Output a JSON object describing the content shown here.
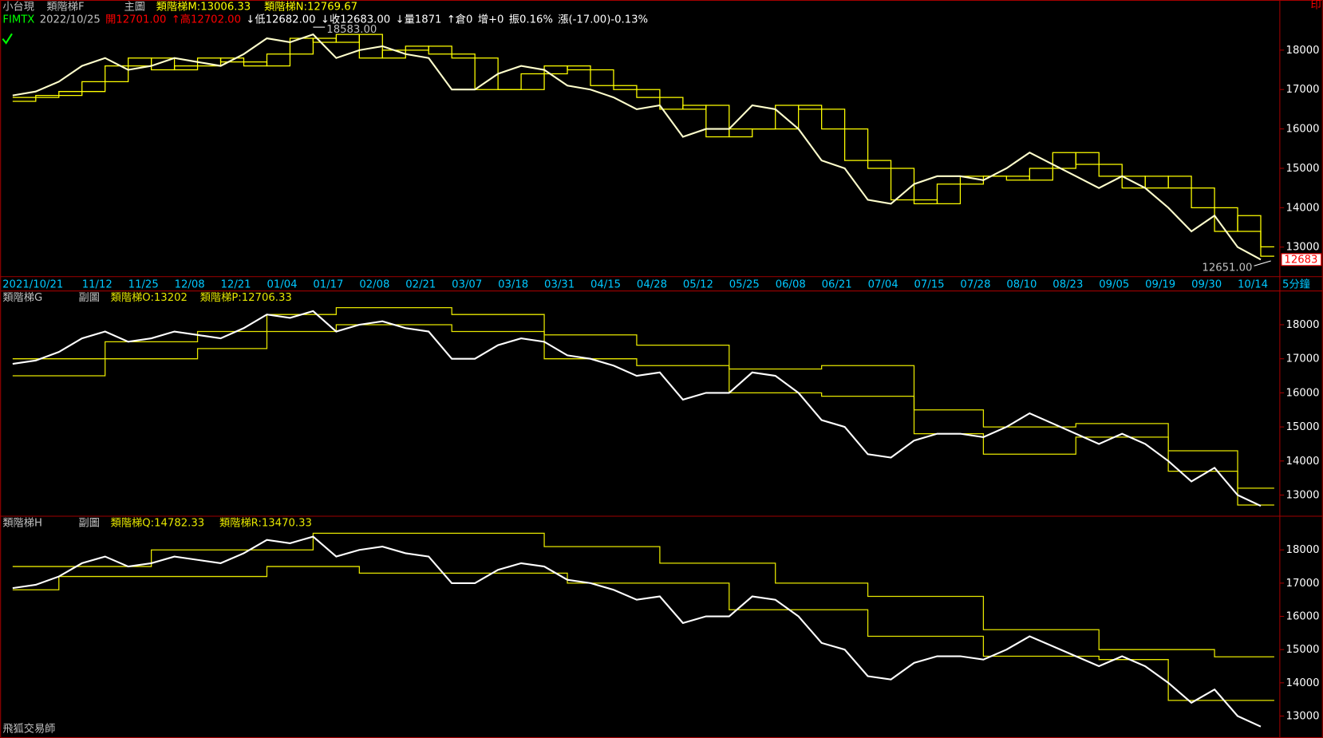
{
  "chart_data": [
    {
      "type": "line",
      "header": [
        "小台現",
        "類階梯F",
        "主圖"
      ],
      "quote": [
        {
          "text": "FIMTX",
          "color": "#00ff00"
        },
        {
          "text": "2022/10/25",
          "color": "#c0c0c0"
        },
        {
          "text": "開12701.00",
          "color": "#ff0000"
        },
        {
          "text": "↑高12702.00",
          "color": "#ff0000"
        },
        {
          "text": "↓低12682.00",
          "color": "#ffffff"
        },
        {
          "text": "↓收12683.00",
          "color": "#ffffff"
        },
        {
          "text": "↓量1871",
          "color": "#ffffff"
        },
        {
          "text": "↑倉0",
          "color": "#ffffff"
        },
        {
          "text": "增+0",
          "color": "#ffffff"
        },
        {
          "text": "振0.16%",
          "color": "#ffffff"
        },
        {
          "text": "漲(-17.00)-0.13%",
          "color": "#ffffff"
        }
      ],
      "categories": [
        "2021/10/21",
        null,
        null,
        "11/12",
        null,
        "11/25",
        null,
        "12/08",
        null,
        "12/21",
        null,
        "01/04",
        null,
        "01/17",
        null,
        "02/08",
        null,
        "02/21",
        null,
        "03/07",
        null,
        "03/18",
        null,
        "03/31",
        null,
        "04/15",
        null,
        "04/28",
        null,
        "05/12",
        null,
        "05/25",
        null,
        "06/08",
        null,
        "06/21",
        null,
        "07/04",
        null,
        "07/15",
        null,
        "07/28",
        null,
        "08/10",
        null,
        "08/23",
        null,
        "09/05",
        null,
        "09/19",
        null,
        "09/30",
        null,
        "10/14",
        null
      ],
      "period": "5分鐘",
      "corner_mark": "印",
      "price": {
        "color": "#ffffcc",
        "values": [
          16850,
          16950,
          17200,
          17600,
          17800,
          17500,
          17600,
          17800,
          17700,
          17600,
          17900,
          18300,
          18200,
          18400,
          17800,
          18000,
          18100,
          17900,
          17800,
          17000,
          17000,
          17400,
          17600,
          17500,
          17100,
          17000,
          16800,
          16500,
          16600,
          15800,
          16000,
          16000,
          16600,
          16500,
          16000,
          15200,
          15000,
          14200,
          14100,
          14600,
          14800,
          14800,
          14700,
          15000,
          15400,
          15100,
          14800,
          14500,
          14800,
          14500,
          14000,
          13400,
          13800,
          13000,
          12683
        ]
      },
      "series": [
        {
          "name": "類階梯M:13006.33",
          "color": "#ffff00",
          "values": [
            16800,
            16850,
            16950,
            17200,
            17600,
            17800,
            17500,
            17600,
            17800,
            17700,
            17600,
            17900,
            18300,
            18200,
            18400,
            17800,
            18000,
            18100,
            17900,
            17800,
            17000,
            17000,
            17400,
            17600,
            17500,
            17100,
            17000,
            16800,
            16500,
            16600,
            15800,
            16000,
            16000,
            16600,
            16500,
            16000,
            15200,
            15000,
            14200,
            14100,
            14600,
            14800,
            14800,
            14700,
            15000,
            15400,
            15100,
            14800,
            14500,
            14800,
            14500,
            14000,
            13400,
            13800,
            13006.33
          ]
        },
        {
          "name": "類階梯N:12769.67",
          "color": "#ffff00",
          "values": [
            16700,
            16800,
            16850,
            16950,
            17200,
            17600,
            17800,
            17500,
            17600,
            17800,
            17700,
            17600,
            17900,
            18300,
            18200,
            18400,
            17800,
            18000,
            18100,
            17900,
            17800,
            17000,
            17000,
            17400,
            17600,
            17500,
            17100,
            17000,
            16800,
            16500,
            16600,
            15800,
            16000,
            16000,
            16600,
            16500,
            16000,
            15200,
            15000,
            14200,
            14100,
            14600,
            14800,
            14800,
            14700,
            15000,
            15400,
            15100,
            14800,
            14500,
            14800,
            14500,
            14000,
            13400,
            12769.67
          ]
        }
      ],
      "high_label": {
        "value": 18583,
        "label": "18583.00",
        "index": 13
      },
      "low_label": {
        "value": 12651,
        "label": "12651.00",
        "index": 54
      },
      "last_price": {
        "value": 12683,
        "label": "12683"
      },
      "ylim": [
        12250,
        19230
      ],
      "yticks": [
        13000,
        14000,
        15000,
        16000,
        17000,
        18000
      ]
    },
    {
      "type": "line",
      "header": [
        "類階梯G",
        "副圖"
      ],
      "price": {
        "color": "#ffffff",
        "values": [
          16850,
          16950,
          17200,
          17600,
          17800,
          17500,
          17600,
          17800,
          17700,
          17600,
          17900,
          18300,
          18200,
          18400,
          17800,
          18000,
          18100,
          17900,
          17800,
          17000,
          17000,
          17400,
          17600,
          17500,
          17100,
          17000,
          16800,
          16500,
          16600,
          15800,
          16000,
          16000,
          16600,
          16500,
          16000,
          15200,
          15000,
          14200,
          14100,
          14600,
          14800,
          14800,
          14700,
          15000,
          15400,
          15100,
          14800,
          14500,
          14800,
          14500,
          14000,
          13400,
          13800,
          13000,
          12683
        ]
      },
      "series": [
        {
          "name": "類階梯O:13202",
          "color": "#e6e600",
          "values": [
            17000,
            17000,
            17000,
            17000,
            17500,
            17500,
            17500,
            17500,
            17800,
            17800,
            17800,
            18300,
            18300,
            18300,
            18500,
            18500,
            18500,
            18500,
            18500,
            18300,
            18300,
            18300,
            18300,
            17700,
            17700,
            17700,
            17700,
            17400,
            17400,
            17400,
            17400,
            16700,
            16700,
            16700,
            16700,
            16800,
            16800,
            16800,
            16800,
            15500,
            15500,
            15500,
            15000,
            15000,
            15000,
            15000,
            15100,
            15100,
            15100,
            15100,
            14300,
            14300,
            14300,
            13202,
            13202
          ]
        },
        {
          "name": "類階梯P:12706.33",
          "color": "#e6e600",
          "values": [
            16500,
            16500,
            16500,
            16500,
            17000,
            17000,
            17000,
            17000,
            17300,
            17300,
            17300,
            17800,
            17800,
            17800,
            18000,
            18000,
            18000,
            18000,
            18000,
            17800,
            17800,
            17800,
            17800,
            17000,
            17000,
            17000,
            17000,
            16800,
            16800,
            16800,
            16800,
            16000,
            16000,
            16000,
            16000,
            15900,
            15900,
            15900,
            15900,
            14800,
            14800,
            14800,
            14200,
            14200,
            14200,
            14200,
            14700,
            14700,
            14700,
            14700,
            13700,
            13700,
            13700,
            12706.33,
            12706.33
          ]
        }
      ],
      "ylim": [
        12380,
        18990
      ],
      "yticks": [
        13000,
        14000,
        15000,
        16000,
        17000,
        18000
      ]
    },
    {
      "type": "line",
      "header": [
        "類階梯H",
        "副圖"
      ],
      "footer": "飛狐交易師",
      "price": {
        "color": "#ffffff",
        "values": [
          16850,
          16950,
          17200,
          17600,
          17800,
          17500,
          17600,
          17800,
          17700,
          17600,
          17900,
          18300,
          18200,
          18400,
          17800,
          18000,
          18100,
          17900,
          17800,
          17000,
          17000,
          17400,
          17600,
          17500,
          17100,
          17000,
          16800,
          16500,
          16600,
          15800,
          16000,
          16000,
          16600,
          16500,
          16000,
          15200,
          15000,
          14200,
          14100,
          14600,
          14800,
          14800,
          14700,
          15000,
          15400,
          15100,
          14800,
          14500,
          14800,
          14500,
          14000,
          13400,
          13800,
          13000,
          12683
        ]
      },
      "series": [
        {
          "name": "類階梯Q:14782.33",
          "color": "#e6e600",
          "values": [
            17500,
            17500,
            17500,
            17500,
            17500,
            17500,
            18000,
            18000,
            18000,
            18000,
            18000,
            18000,
            18000,
            18500,
            18500,
            18500,
            18500,
            18500,
            18500,
            18500,
            18500,
            18500,
            18500,
            18100,
            18100,
            18100,
            18100,
            18100,
            17600,
            17600,
            17600,
            17600,
            17600,
            17000,
            17000,
            17000,
            17000,
            16600,
            16600,
            16600,
            16600,
            16600,
            15600,
            15600,
            15600,
            15600,
            15600,
            15000,
            15000,
            15000,
            15000,
            15000,
            14782.33,
            14782.33,
            14782.33
          ]
        },
        {
          "name": "類階梯R:13470.33",
          "color": "#e6e600",
          "values": [
            16800,
            16800,
            17200,
            17200,
            17200,
            17200,
            17200,
            17200,
            17200,
            17200,
            17200,
            17500,
            17500,
            17500,
            17500,
            17300,
            17300,
            17300,
            17300,
            17300,
            17300,
            17300,
            17300,
            17300,
            17000,
            17000,
            17000,
            17000,
            17000,
            17000,
            17000,
            16200,
            16200,
            16200,
            16200,
            16200,
            16200,
            15400,
            15400,
            15400,
            15400,
            15400,
            14800,
            14800,
            14800,
            14800,
            14800,
            14700,
            14700,
            14700,
            13470.33,
            13470.33,
            13470.33,
            13470.33,
            13470.33
          ]
        }
      ],
      "ylim": [
        12390,
        19015
      ],
      "yticks": [
        13000,
        14000,
        15000,
        16000,
        17000,
        18000
      ]
    }
  ]
}
